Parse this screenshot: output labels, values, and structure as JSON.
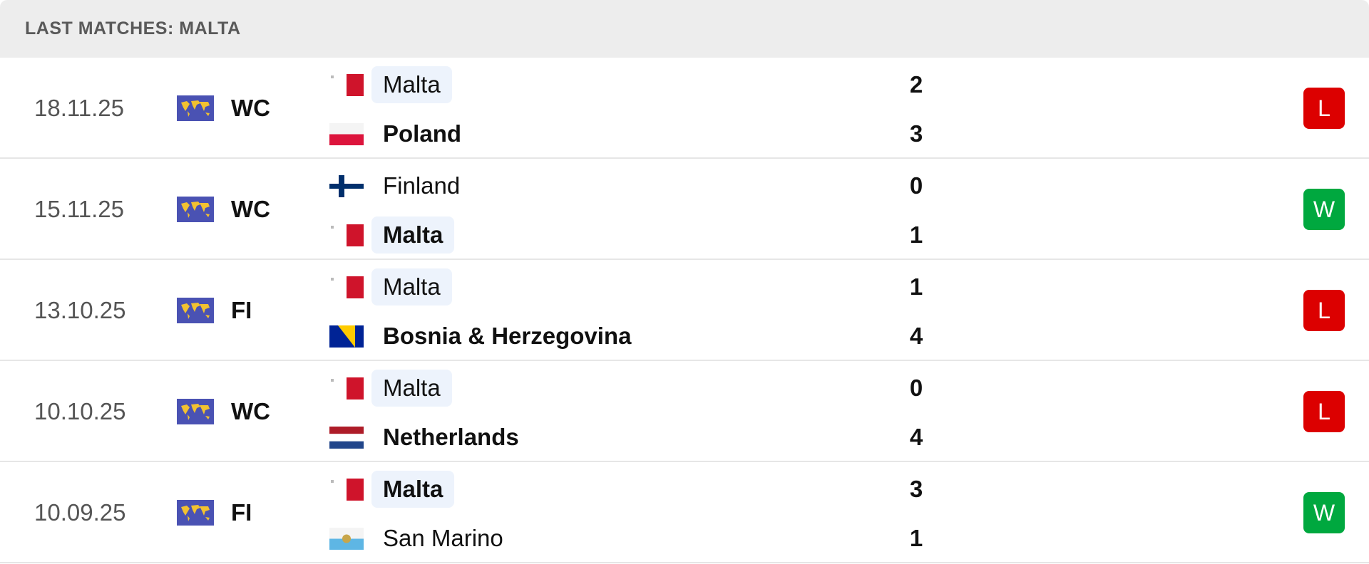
{
  "header": {
    "title": "LAST MATCHES: MALTA"
  },
  "matches": [
    {
      "date": "18.11.25",
      "competition": "WC",
      "home": {
        "name": "Malta",
        "score": 2,
        "highlighted": true
      },
      "away": {
        "name": "Poland",
        "score": 3,
        "highlighted": false
      },
      "result": "L",
      "result_color": "#dc0000"
    },
    {
      "date": "15.11.25",
      "competition": "WC",
      "home": {
        "name": "Finland",
        "score": 0,
        "highlighted": false
      },
      "away": {
        "name": "Malta",
        "score": 1,
        "highlighted": true
      },
      "result": "W",
      "result_color": "#00a83f"
    },
    {
      "date": "13.10.25",
      "competition": "FI",
      "home": {
        "name": "Malta",
        "score": 1,
        "highlighted": true
      },
      "away": {
        "name": "Bosnia & Herzegovina",
        "score": 4,
        "highlighted": false
      },
      "result": "L",
      "result_color": "#dc0000"
    },
    {
      "date": "10.10.25",
      "competition": "WC",
      "home": {
        "name": "Malta",
        "score": 0,
        "highlighted": true
      },
      "away": {
        "name": "Netherlands",
        "score": 4,
        "highlighted": false
      },
      "result": "L",
      "result_color": "#dc0000"
    },
    {
      "date": "10.09.25",
      "competition": "FI",
      "home": {
        "name": "Malta",
        "score": 3,
        "highlighted": true
      },
      "away": {
        "name": "San Marino",
        "score": 1,
        "highlighted": false
      },
      "result": "W",
      "result_color": "#00a83f"
    }
  ]
}
